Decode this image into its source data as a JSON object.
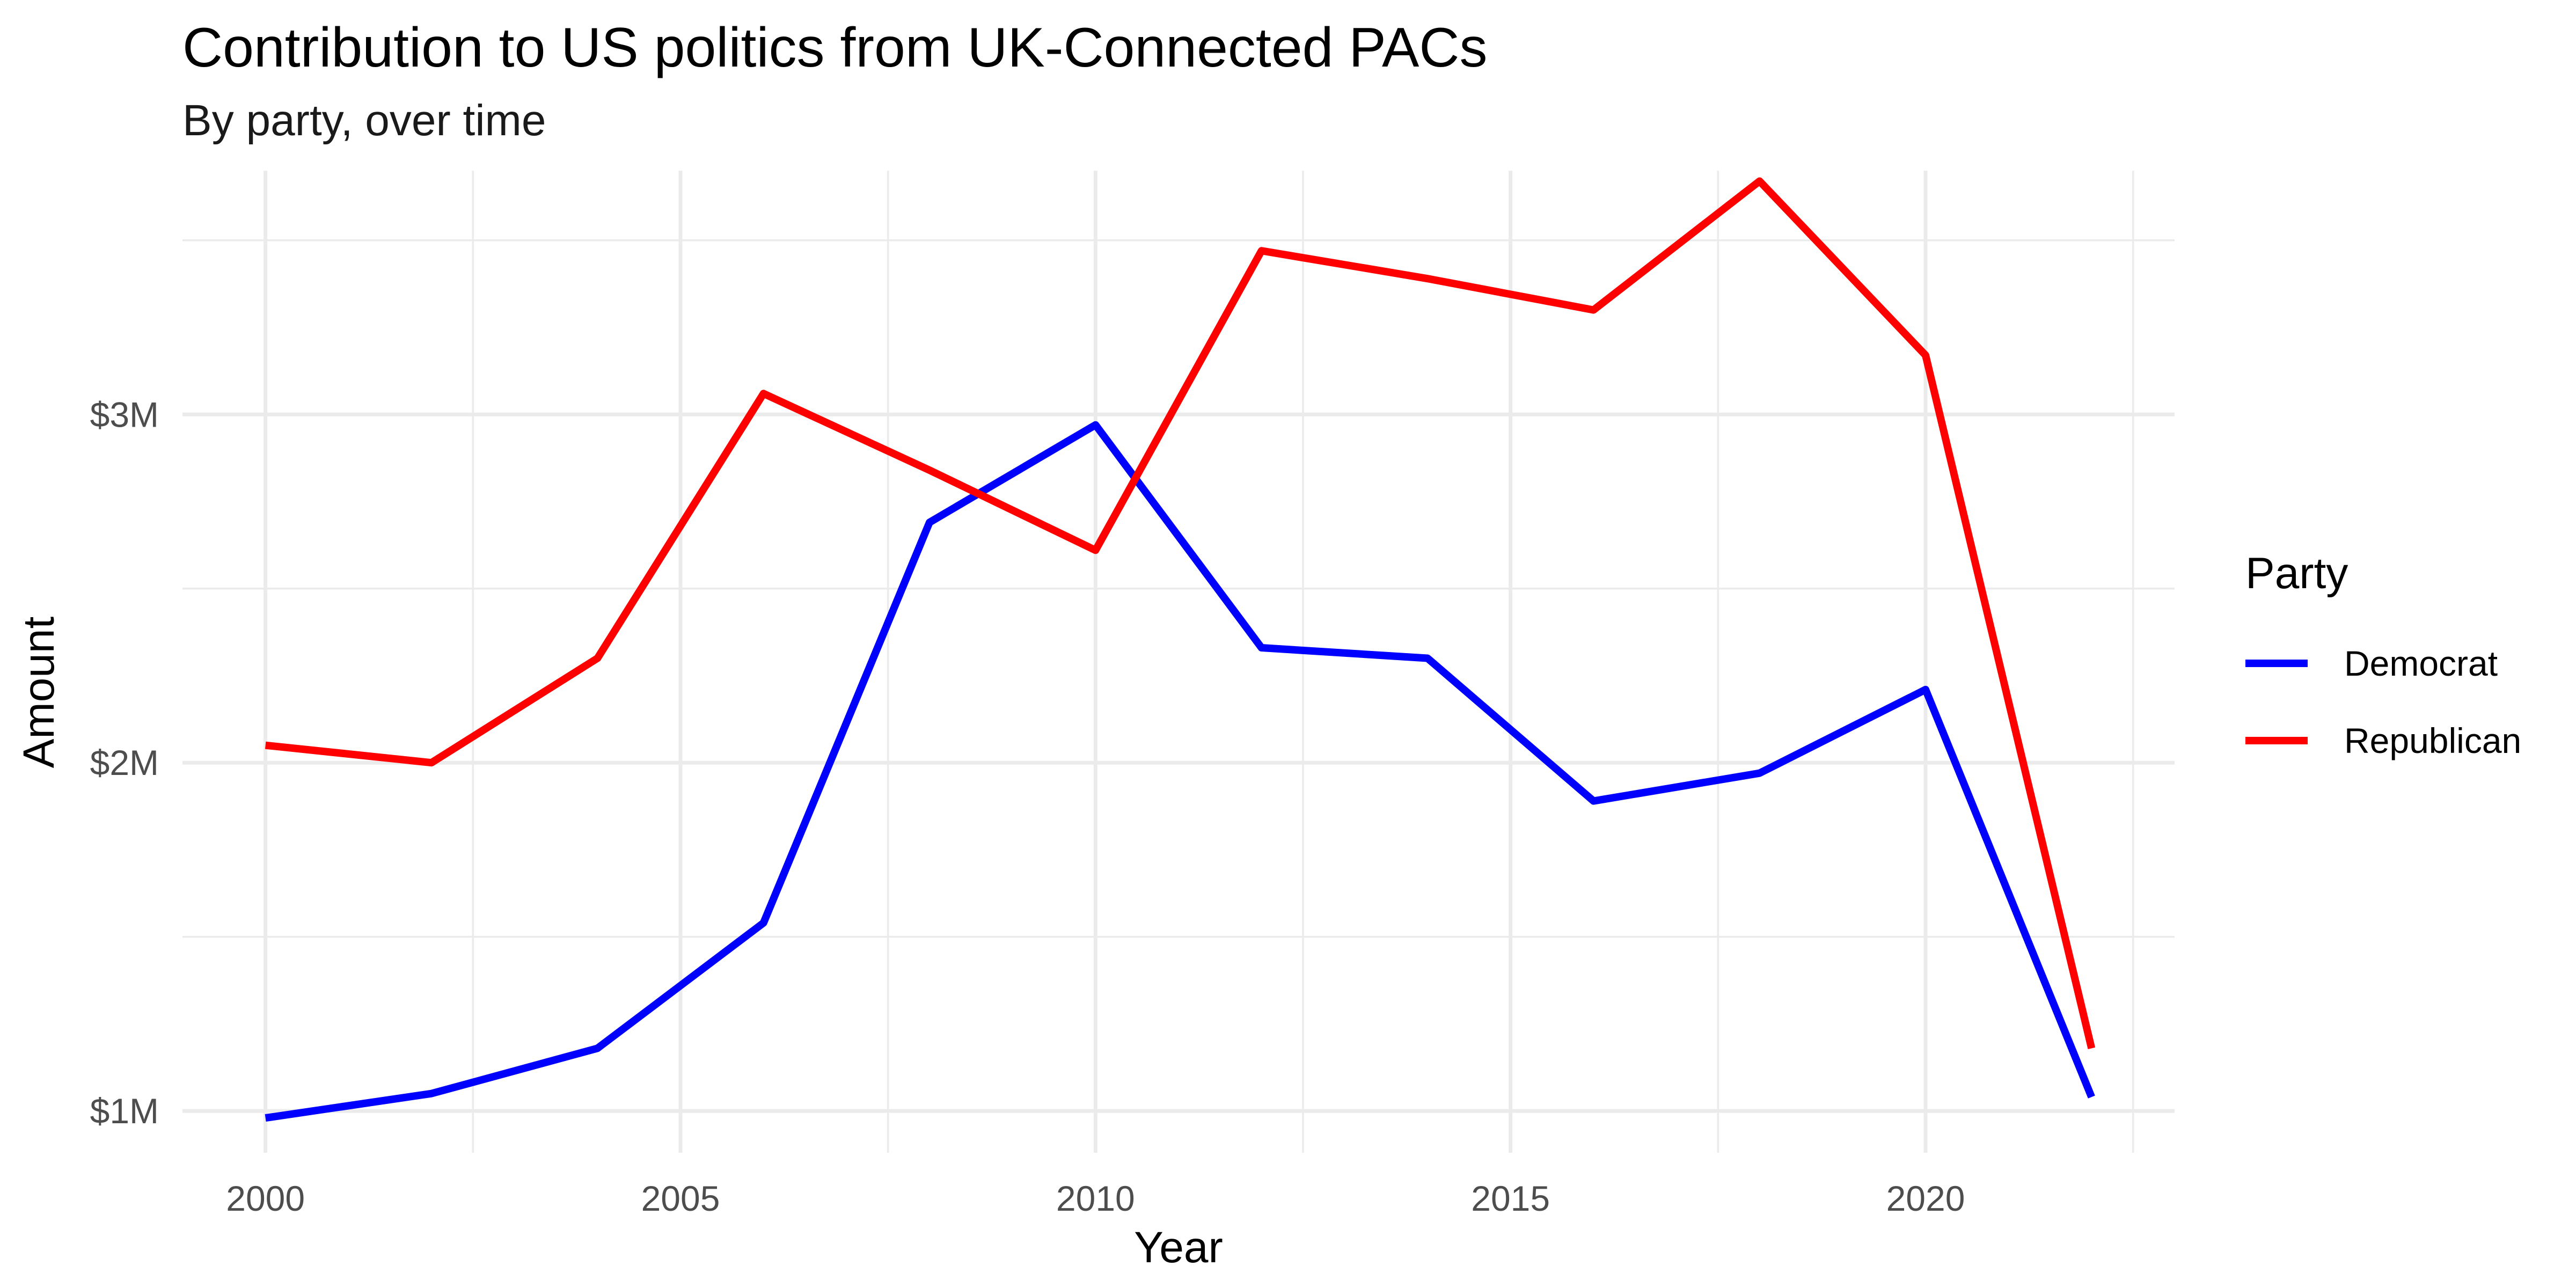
{
  "chart_data": {
    "type": "line",
    "title": "Contribution to US politics from UK-Connected PACs",
    "subtitle": "By party, over time",
    "xlabel": "Year",
    "ylabel": "Amount",
    "x": [
      2000,
      2002,
      2004,
      2006,
      2008,
      2010,
      2012,
      2014,
      2016,
      2018,
      2020,
      2022
    ],
    "xlim": [
      1999,
      2023
    ],
    "ylim": [
      0.88,
      3.7
    ],
    "x_ticks": [
      {
        "value": 2000,
        "label": "2000"
      },
      {
        "value": 2005,
        "label": "2005"
      },
      {
        "value": 2010,
        "label": "2010"
      },
      {
        "value": 2015,
        "label": "2015"
      },
      {
        "value": 2020,
        "label": "2020"
      }
    ],
    "x_minor_ticks": [
      2002.5,
      2007.5,
      2012.5,
      2017.5,
      2022.5
    ],
    "y_ticks": [
      {
        "value": 1,
        "label": "$1M"
      },
      {
        "value": 2,
        "label": "$2M"
      },
      {
        "value": 3,
        "label": "$3M"
      }
    ],
    "y_minor_ticks": [
      1.5,
      2.5,
      3.5
    ],
    "grid": true,
    "legend": {
      "title": "Party",
      "position": "right"
    },
    "series": [
      {
        "name": "Democrat",
        "color": "#0000FF",
        "values": [
          0.98,
          1.05,
          1.18,
          1.54,
          2.69,
          2.97,
          2.33,
          2.3,
          1.89,
          1.97,
          2.21,
          1.04
        ]
      },
      {
        "name": "Republican",
        "color": "#FF0000",
        "values": [
          2.05,
          2.0,
          2.3,
          3.06,
          2.84,
          2.61,
          3.47,
          3.39,
          3.3,
          3.67,
          3.17,
          1.18
        ]
      }
    ]
  }
}
